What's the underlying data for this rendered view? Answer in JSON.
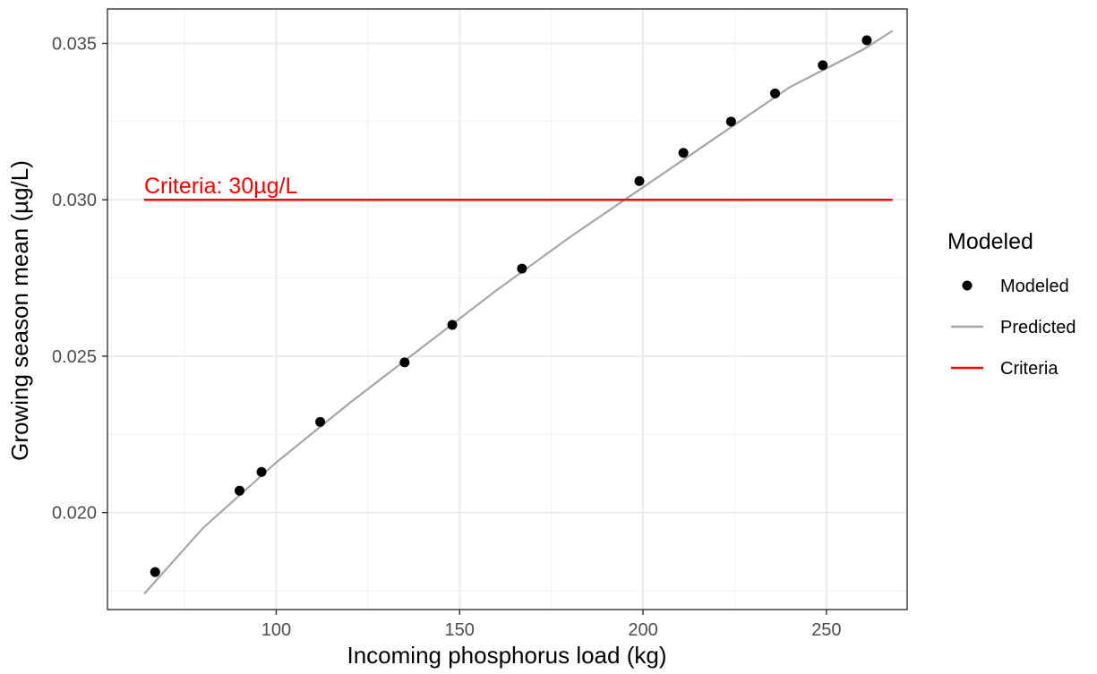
{
  "chart_data": {
    "type": "scatter",
    "xlabel": "Incoming phosphorus load (kg)",
    "ylabel": "Growing season mean (µg/L)",
    "xlim": [
      54,
      272
    ],
    "ylim": [
      0.0169,
      0.0361
    ],
    "x_ticks": [
      100,
      150,
      200,
      250
    ],
    "x_tick_labels": [
      "100",
      "150",
      "200",
      "250"
    ],
    "y_ticks": [
      0.02,
      0.025,
      0.03,
      0.035
    ],
    "y_tick_labels": [
      "0.020",
      "0.025",
      "0.030",
      "0.035"
    ],
    "grid": true,
    "legend": {
      "title": "Modeled",
      "position": "right",
      "entries": [
        {
          "label": "Modeled",
          "kind": "point",
          "color": "#000000"
        },
        {
          "label": "Predicted",
          "kind": "line",
          "color": "#a6a6a6"
        },
        {
          "label": "Criteria",
          "kind": "line",
          "color": "#ff0000"
        }
      ]
    },
    "series": [
      {
        "name": "Modeled",
        "kind": "points",
        "color": "#000000",
        "x": [
          67,
          90,
          96,
          112,
          135,
          148,
          167,
          199,
          211,
          224,
          236,
          249,
          261
        ],
        "y": [
          0.0181,
          0.0207,
          0.0213,
          0.0229,
          0.0248,
          0.026,
          0.0278,
          0.0306,
          0.0315,
          0.0325,
          0.0334,
          0.0343,
          0.0351
        ]
      },
      {
        "name": "Predicted",
        "kind": "line",
        "color": "#a6a6a6",
        "x": [
          64,
          80,
          100,
          120,
          140,
          160,
          180,
          200,
          220,
          240,
          260,
          268
        ],
        "y": [
          0.0174,
          0.0195,
          0.0216,
          0.0235,
          0.0253,
          0.0271,
          0.0288,
          0.0304,
          0.032,
          0.0336,
          0.0348,
          0.0354
        ]
      },
      {
        "name": "Criteria",
        "kind": "hline",
        "color": "#ff0000",
        "x": [
          64,
          268
        ],
        "y": [
          0.03,
          0.03
        ]
      }
    ],
    "annotations": [
      {
        "text": "Criteria: 30µg/L",
        "x": 64,
        "y": 0.03,
        "color": "#ff0000"
      }
    ],
    "colors": {
      "panel_border": "#333333",
      "grid_major": "#ebebeb",
      "grid_minor": "#f2f2f2",
      "points": "#000000",
      "predicted": "#a6a6a6",
      "criteria": "#ff0000"
    }
  }
}
